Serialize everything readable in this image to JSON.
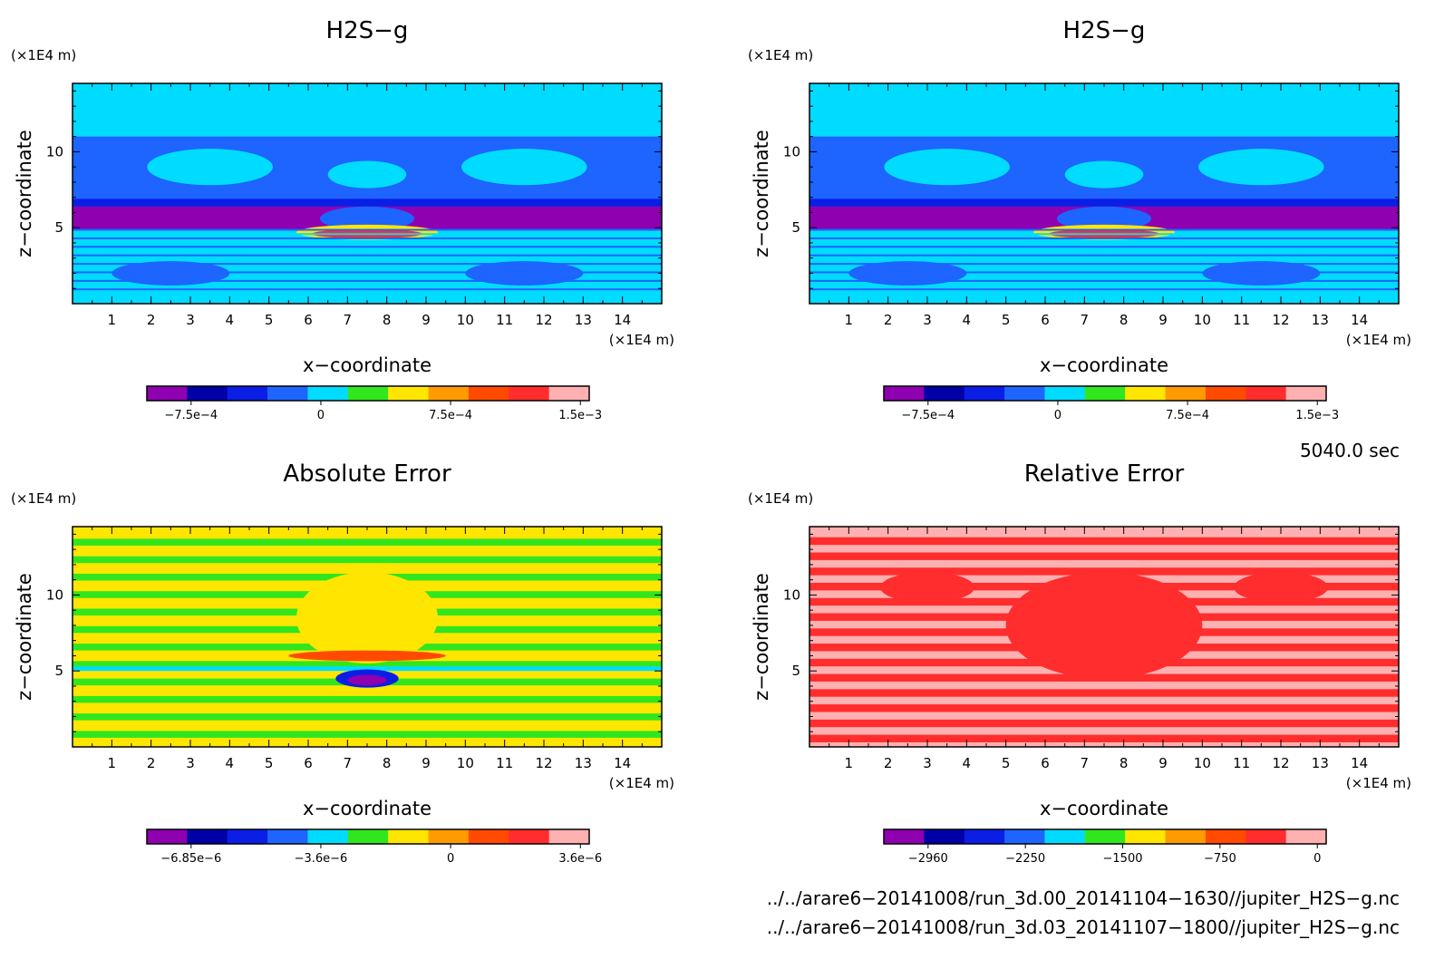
{
  "chart_data": [
    {
      "type": "heatmap",
      "title": "H2S−g",
      "xlabel": "x−coordinate",
      "ylabel": "z−coordinate",
      "x_unit": "(×1E4 m)",
      "z_unit": "(×1E4 m)",
      "xlim": [
        0,
        15
      ],
      "ylim": [
        0,
        14.5
      ],
      "x_ticks": [
        "1",
        "2",
        "3",
        "4",
        "5",
        "6",
        "7",
        "8",
        "9",
        "10",
        "11",
        "12",
        "13",
        "14"
      ],
      "y_ticks": [
        "5",
        "10"
      ],
      "colorbar": {
        "colors": [
          "#8e00b0",
          "#0000a8",
          "#0a1ee6",
          "#1e64ff",
          "#00dcff",
          "#32e61e",
          "#ffe600",
          "#ff9b00",
          "#ff4a00",
          "#ff2d2d",
          "#ffb0b0"
        ],
        "tick_labels": [
          "−7.5e−4",
          "0",
          "7.5e−4",
          "1.5e−3"
        ]
      }
    },
    {
      "type": "heatmap",
      "title": "H2S−g",
      "xlabel": "x−coordinate",
      "ylabel": "z−coordinate",
      "x_unit": "(×1E4 m)",
      "z_unit": "(×1E4 m)",
      "xlim": [
        0,
        15
      ],
      "ylim": [
        0,
        14.5
      ],
      "x_ticks": [
        "1",
        "2",
        "3",
        "4",
        "5",
        "6",
        "7",
        "8",
        "9",
        "10",
        "11",
        "12",
        "13",
        "14"
      ],
      "y_ticks": [
        "5",
        "10"
      ],
      "colorbar": {
        "colors": [
          "#8e00b0",
          "#0000a8",
          "#0a1ee6",
          "#1e64ff",
          "#00dcff",
          "#32e61e",
          "#ffe600",
          "#ff9b00",
          "#ff4a00",
          "#ff2d2d",
          "#ffb0b0"
        ],
        "tick_labels": [
          "−7.5e−4",
          "0",
          "7.5e−4",
          "1.5e−3"
        ]
      }
    },
    {
      "type": "heatmap",
      "title": "Absolute Error",
      "xlabel": "x−coordinate",
      "ylabel": "z−coordinate",
      "x_unit": "(×1E4 m)",
      "z_unit": "(×1E4 m)",
      "xlim": [
        0,
        15
      ],
      "ylim": [
        0,
        14.5
      ],
      "x_ticks": [
        "1",
        "2",
        "3",
        "4",
        "5",
        "6",
        "7",
        "8",
        "9",
        "10",
        "11",
        "12",
        "13",
        "14"
      ],
      "y_ticks": [
        "5",
        "10"
      ],
      "colorbar": {
        "colors": [
          "#8e00b0",
          "#0000a8",
          "#0a1ee6",
          "#1e64ff",
          "#00dcff",
          "#32e61e",
          "#ffe600",
          "#ff9b00",
          "#ff4a00",
          "#ff2d2d",
          "#ffb0b0"
        ],
        "tick_labels": [
          "−6.85e−6",
          "−3.6e−6",
          "0",
          "3.6e−6"
        ]
      }
    },
    {
      "type": "heatmap",
      "title": "Relative Error",
      "xlabel": "x−coordinate",
      "ylabel": "z−coordinate",
      "x_unit": "(×1E4 m)",
      "z_unit": "(×1E4 m)",
      "xlim": [
        0,
        15
      ],
      "ylim": [
        0,
        14.5
      ],
      "x_ticks": [
        "1",
        "2",
        "3",
        "4",
        "5",
        "6",
        "7",
        "8",
        "9",
        "10",
        "11",
        "12",
        "13",
        "14"
      ],
      "y_ticks": [
        "5",
        "10"
      ],
      "colorbar": {
        "colors": [
          "#8e00b0",
          "#0000a8",
          "#0a1ee6",
          "#1e64ff",
          "#00dcff",
          "#32e61e",
          "#ffe600",
          "#ff9b00",
          "#ff4a00",
          "#ff2d2d",
          "#ffb0b0"
        ],
        "tick_labels": [
          "−2960",
          "−2250",
          "−1500",
          "−750",
          "0"
        ]
      }
    }
  ],
  "info": {
    "time": "5040.0 sec",
    "file1": "../../arare6−20141008/run_3d.00_20141104−1630//jupiter_H2S−g.nc",
    "file2": "../../arare6−20141008/run_3d.03_20141107−1800//jupiter_H2S−g.nc"
  }
}
